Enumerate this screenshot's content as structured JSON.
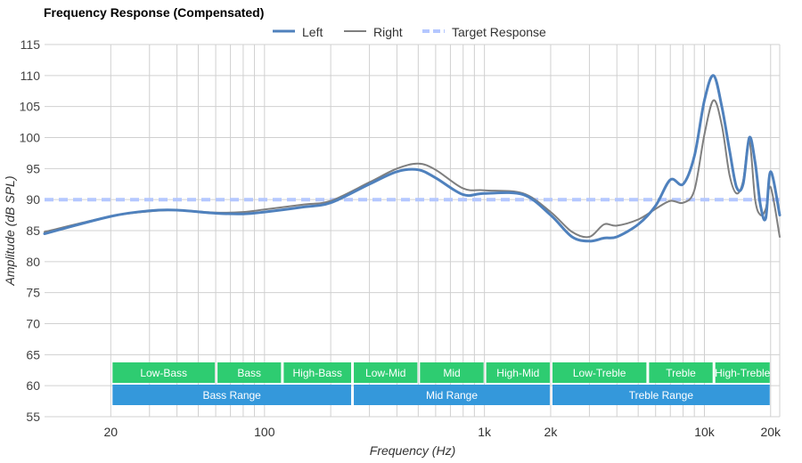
{
  "chart_data": {
    "type": "line",
    "title": "Frequency Response (Compensated)",
    "xlabel": "Frequency (Hz)",
    "ylabel": "Amplitude (dB SPL)",
    "xscale": "log",
    "xlim": [
      10,
      22000
    ],
    "ylim": [
      55,
      115
    ],
    "yticks": [
      55,
      60,
      65,
      70,
      75,
      80,
      85,
      90,
      95,
      100,
      105,
      110,
      115
    ],
    "xticks": [
      {
        "value": 20,
        "label": "20"
      },
      {
        "value": 100,
        "label": "100"
      },
      {
        "value": 1000,
        "label": "1k"
      },
      {
        "value": 2000,
        "label": "2k"
      },
      {
        "value": 10000,
        "label": "10k"
      },
      {
        "value": 20000,
        "label": "20k"
      }
    ],
    "legend_position": "top-center",
    "series": [
      {
        "name": "Left",
        "color": "#4f81bd",
        "style": "solid",
        "x": [
          10,
          20,
          30,
          40,
          60,
          80,
          100,
          150,
          200,
          300,
          400,
          500,
          600,
          800,
          1000,
          1500,
          2000,
          2500,
          3000,
          3500,
          4000,
          5000,
          6000,
          7000,
          8000,
          9000,
          10000,
          11000,
          12000,
          13000,
          14000,
          15000,
          16000,
          17000,
          18000,
          19000,
          20000,
          22000
        ],
        "values": [
          84.5,
          87.3,
          88.2,
          88.3,
          87.8,
          87.7,
          88.0,
          88.8,
          89.5,
          92.5,
          94.5,
          94.8,
          93.5,
          90.8,
          91.0,
          90.8,
          87.5,
          84.0,
          83.3,
          83.8,
          84.0,
          86.0,
          89.0,
          93.2,
          92.5,
          97.0,
          106.0,
          110.0,
          105.0,
          98.0,
          92.0,
          92.5,
          100.0,
          96.0,
          89.0,
          87.0,
          94.5,
          87.5
        ]
      },
      {
        "name": "Right",
        "color": "#7f7f7f",
        "style": "solid",
        "x": [
          10,
          20,
          30,
          40,
          60,
          80,
          100,
          150,
          200,
          300,
          400,
          500,
          600,
          800,
          1000,
          1500,
          2000,
          2500,
          3000,
          3500,
          4000,
          5000,
          6000,
          7000,
          8000,
          9000,
          10000,
          11000,
          12000,
          13000,
          14000,
          15000,
          16000,
          17000,
          18000,
          19000,
          20000,
          22000
        ],
        "values": [
          84.8,
          87.3,
          88.1,
          88.3,
          87.9,
          88.0,
          88.4,
          89.2,
          89.8,
          92.8,
          95.0,
          95.8,
          94.8,
          91.8,
          91.5,
          91.0,
          88.0,
          84.8,
          84.0,
          86.0,
          85.8,
          86.8,
          88.5,
          89.8,
          89.5,
          91.5,
          100.5,
          106.0,
          102.0,
          94.0,
          91.0,
          93.0,
          99.5,
          90.0,
          87.5,
          88.5,
          92.0,
          84.0
        ]
      },
      {
        "name": "Target Response",
        "color": "#b4c7ff",
        "style": "dashed",
        "x": [
          10,
          22000
        ],
        "values": [
          90,
          90
        ]
      }
    ],
    "bands": [
      {
        "row": "top",
        "label": "Low-Bass",
        "from": 20,
        "to": 60,
        "color": "#2ecc71"
      },
      {
        "row": "top",
        "label": "Bass",
        "from": 60,
        "to": 120,
        "color": "#2ecc71"
      },
      {
        "row": "top",
        "label": "High-Bass",
        "from": 120,
        "to": 250,
        "color": "#2ecc71"
      },
      {
        "row": "top",
        "label": "Low-Mid",
        "from": 250,
        "to": 500,
        "color": "#2ecc71"
      },
      {
        "row": "top",
        "label": "Mid",
        "from": 500,
        "to": 1000,
        "color": "#2ecc71"
      },
      {
        "row": "top",
        "label": "High-Mid",
        "from": 1000,
        "to": 2000,
        "color": "#2ecc71"
      },
      {
        "row": "top",
        "label": "Low-Treble",
        "from": 2000,
        "to": 5500,
        "color": "#2ecc71"
      },
      {
        "row": "top",
        "label": "Treble",
        "from": 5500,
        "to": 11000,
        "color": "#2ecc71"
      },
      {
        "row": "top",
        "label": "High-Treble",
        "from": 11000,
        "to": 20000,
        "color": "#2ecc71"
      },
      {
        "row": "bottom",
        "label": "Bass Range",
        "from": 20,
        "to": 250,
        "color": "#3498db"
      },
      {
        "row": "bottom",
        "label": "Mid Range",
        "from": 250,
        "to": 2000,
        "color": "#3498db"
      },
      {
        "row": "bottom",
        "label": "Treble Range",
        "from": 2000,
        "to": 20000,
        "color": "#3498db"
      }
    ]
  }
}
